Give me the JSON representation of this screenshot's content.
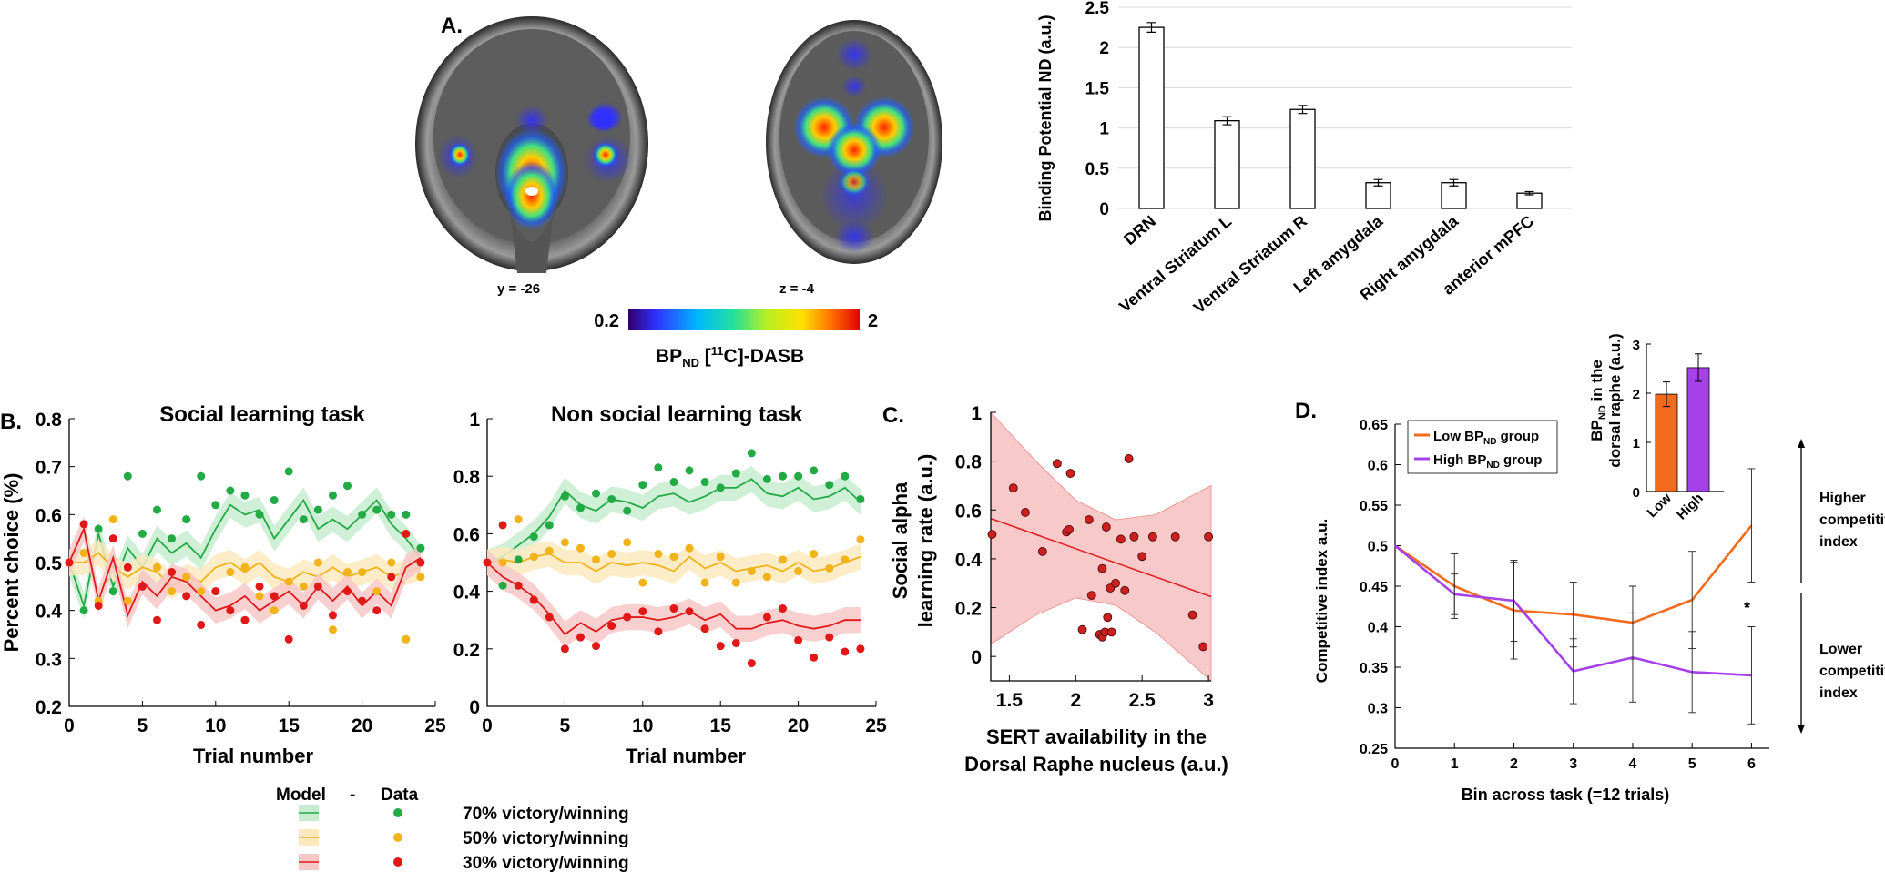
{
  "panelA": {
    "label": "A.",
    "coronal_label": "y = -26",
    "axial_label": "z = -4",
    "colorbar": {
      "min": "0.2",
      "max": "2",
      "title_main": "BP",
      "title_sub": "ND",
      "title_sup": "11",
      "title_tail": "C]-DASB",
      "title_open": " ["
    },
    "chart_data": {
      "type": "bar",
      "ylabel": "Binding Potential ND (a.u.)",
      "ylim": [
        0,
        2.5
      ],
      "yticks": [
        "0",
        "0.5",
        "1",
        "1.5",
        "2",
        "2.5"
      ],
      "categories": [
        "DRN",
        "Ventral Striatum L",
        "Ventral Striatum R",
        "Left amygdala",
        "Right amygdala",
        "anterior mPFC"
      ],
      "values": [
        2.25,
        1.09,
        1.23,
        0.32,
        0.32,
        0.19
      ],
      "errors": [
        0.06,
        0.05,
        0.05,
        0.04,
        0.04,
        0.02
      ],
      "bar_color": "#ffffff",
      "grid_color": "#d9d9d9"
    }
  },
  "panelB": {
    "label": "B.",
    "social": {
      "title": "Social learning task",
      "ylabel": "Percent choice (%)",
      "xlabel": "Trial number",
      "yticks": [
        "0.2",
        "0.3",
        "0.4",
        "0.5",
        "0.6",
        "0.7",
        "0.8"
      ],
      "xticks": [
        "0",
        "5",
        "10",
        "15",
        "20",
        "25"
      ],
      "ylim": [
        0.2,
        0.8
      ],
      "xlim": [
        0,
        25
      ],
      "model_70": [
        0.5,
        0.41,
        0.56,
        0.45,
        0.53,
        0.49,
        0.55,
        0.52,
        0.54,
        0.51,
        0.57,
        0.62,
        0.6,
        0.61,
        0.55,
        0.59,
        0.63,
        0.57,
        0.59,
        0.57,
        0.6,
        0.63,
        0.58,
        0.55,
        0.51
      ],
      "model_50": [
        0.5,
        0.5,
        0.52,
        0.49,
        0.47,
        0.49,
        0.48,
        0.45,
        0.47,
        0.46,
        0.49,
        0.5,
        0.48,
        0.5,
        0.47,
        0.46,
        0.48,
        0.47,
        0.49,
        0.47,
        0.48,
        0.49,
        0.47,
        0.48,
        0.49
      ],
      "model_30": [
        0.5,
        0.57,
        0.42,
        0.51,
        0.39,
        0.46,
        0.43,
        0.47,
        0.46,
        0.43,
        0.4,
        0.41,
        0.43,
        0.4,
        0.42,
        0.44,
        0.41,
        0.45,
        0.42,
        0.45,
        0.41,
        0.44,
        0.41,
        0.49,
        0.51
      ],
      "data_70": [
        0.5,
        0.4,
        0.57,
        0.44,
        0.68,
        0.56,
        0.61,
        0.55,
        0.59,
        0.68,
        0.62,
        0.65,
        0.64,
        0.6,
        0.63,
        0.69,
        0.59,
        0.61,
        0.64,
        0.66,
        0.6,
        0.61,
        0.6,
        0.6,
        0.53
      ],
      "data_50": [
        0.5,
        0.52,
        0.42,
        0.59,
        0.42,
        0.45,
        0.49,
        0.44,
        0.47,
        0.44,
        0.44,
        0.48,
        0.49,
        0.43,
        0.4,
        0.46,
        0.45,
        0.5,
        0.36,
        0.48,
        0.48,
        0.44,
        0.5,
        0.34,
        0.47
      ],
      "data_30": [
        0.5,
        0.58,
        0.41,
        0.55,
        0.49,
        0.45,
        0.38,
        0.48,
        0.43,
        0.37,
        0.44,
        0.4,
        0.38,
        0.45,
        0.43,
        0.34,
        0.41,
        0.45,
        0.39,
        0.44,
        0.42,
        0.4,
        0.47,
        0.56,
        0.5
      ]
    },
    "nonsocial": {
      "title": "Non social learning task",
      "xlabel": "Trial number",
      "yticks": [
        "0",
        "0.2",
        "0.4",
        "0.6",
        "0.8",
        "1"
      ],
      "xticks": [
        "0",
        "5",
        "10",
        "15",
        "20",
        "25"
      ],
      "ylim": [
        0,
        1
      ],
      "xlim": [
        0,
        25
      ],
      "model_70": [
        0.5,
        0.52,
        0.56,
        0.6,
        0.66,
        0.75,
        0.7,
        0.68,
        0.72,
        0.71,
        0.69,
        0.73,
        0.74,
        0.71,
        0.73,
        0.76,
        0.76,
        0.79,
        0.74,
        0.73,
        0.76,
        0.72,
        0.73,
        0.76,
        0.71
      ],
      "model_50": [
        0.5,
        0.51,
        0.5,
        0.52,
        0.53,
        0.5,
        0.5,
        0.47,
        0.5,
        0.49,
        0.5,
        0.49,
        0.47,
        0.52,
        0.48,
        0.5,
        0.47,
        0.48,
        0.49,
        0.47,
        0.5,
        0.47,
        0.48,
        0.5,
        0.52
      ],
      "model_30": [
        0.5,
        0.45,
        0.42,
        0.38,
        0.32,
        0.25,
        0.29,
        0.26,
        0.3,
        0.31,
        0.31,
        0.3,
        0.31,
        0.33,
        0.3,
        0.32,
        0.27,
        0.27,
        0.29,
        0.3,
        0.28,
        0.27,
        0.28,
        0.3,
        0.3
      ],
      "data_70": [
        0.5,
        0.42,
        0.51,
        0.59,
        0.63,
        0.73,
        0.69,
        0.74,
        0.72,
        0.68,
        0.77,
        0.83,
        0.78,
        0.82,
        0.78,
        0.76,
        0.81,
        0.88,
        0.79,
        0.8,
        0.8,
        0.82,
        0.77,
        0.8,
        0.72
      ],
      "data_50": [
        0.5,
        0.5,
        0.65,
        0.52,
        0.54,
        0.57,
        0.55,
        0.51,
        0.53,
        0.57,
        0.43,
        0.53,
        0.52,
        0.55,
        0.43,
        0.52,
        0.43,
        0.47,
        0.45,
        0.51,
        0.47,
        0.53,
        0.48,
        0.51,
        0.58
      ],
      "data_30": [
        0.5,
        0.63,
        0.42,
        0.37,
        0.31,
        0.2,
        0.24,
        0.21,
        0.28,
        0.31,
        0.33,
        0.26,
        0.34,
        0.33,
        0.27,
        0.21,
        0.22,
        0.15,
        0.31,
        0.34,
        0.23,
        0.17,
        0.24,
        0.19,
        0.2
      ]
    },
    "legend": {
      "model_label": "Model",
      "dash": "-",
      "data_label": "Data",
      "items": [
        {
          "label": "70% victory/winning",
          "color": "#22aa44",
          "band": "#c7ecd0"
        },
        {
          "label": "50% victory/winning",
          "color": "#f2b21a",
          "band": "#fbe9bd"
        },
        {
          "label": "30% victory/winning",
          "color": "#e01818",
          "band": "#f7c8c8"
        }
      ]
    },
    "colors": {
      "green": "#22aa44",
      "orange": "#f2b21a",
      "red": "#e01818"
    }
  },
  "panelC": {
    "label": "C.",
    "chart_data": {
      "type": "scatter",
      "ylabel_line1": "Social alpha",
      "ylabel_line2": "learning rate (a.u.)",
      "xlabel_line1": "SERT availability in the",
      "xlabel_line2": "Dorsal Raphe nucleus (a.u.)",
      "xlim": [
        1.36,
        3.02
      ],
      "ylim": [
        -0.1,
        1.0
      ],
      "xticks": [
        "1.5",
        "2",
        "2.5",
        "3"
      ],
      "yticks": [
        "0",
        "0.2",
        "0.4",
        "0.6",
        "0.8",
        "1"
      ],
      "points": [
        [
          1.37,
          0.5
        ],
        [
          1.53,
          0.69
        ],
        [
          1.62,
          0.59
        ],
        [
          1.75,
          0.43
        ],
        [
          1.86,
          0.79
        ],
        [
          1.93,
          0.51
        ],
        [
          1.95,
          0.52
        ],
        [
          1.96,
          0.75
        ],
        [
          2.05,
          0.11
        ],
        [
          2.1,
          0.56
        ],
        [
          2.12,
          0.25
        ],
        [
          2.18,
          0.09
        ],
        [
          2.2,
          0.08
        ],
        [
          2.2,
          0.36
        ],
        [
          2.22,
          0.1
        ],
        [
          2.23,
          0.53
        ],
        [
          2.24,
          0.16
        ],
        [
          2.26,
          0.28
        ],
        [
          2.27,
          0.1
        ],
        [
          2.3,
          0.3
        ],
        [
          2.34,
          0.48
        ],
        [
          2.37,
          0.27
        ],
        [
          2.4,
          0.81
        ],
        [
          2.44,
          0.49
        ],
        [
          2.5,
          0.41
        ],
        [
          2.58,
          0.49
        ],
        [
          2.75,
          0.49
        ],
        [
          2.88,
          0.17
        ],
        [
          2.96,
          0.04
        ],
        [
          3.0,
          0.49
        ]
      ],
      "fit": [
        [
          1.36,
          0.565
        ],
        [
          3.02,
          0.245
        ]
      ],
      "band_upper": [
        [
          1.36,
          1.0
        ],
        [
          1.7,
          0.8
        ],
        [
          2.0,
          0.64
        ],
        [
          2.3,
          0.56
        ],
        [
          2.6,
          0.58
        ],
        [
          3.02,
          0.7
        ]
      ],
      "band_lower": [
        [
          1.36,
          0.05
        ],
        [
          1.7,
          0.17
        ],
        [
          2.0,
          0.24
        ],
        [
          2.3,
          0.21
        ],
        [
          2.6,
          0.1
        ],
        [
          3.02,
          -0.1
        ]
      ],
      "point_color": "#cc2020",
      "band_color": "#f8c9c9"
    }
  },
  "panelD": {
    "label": "D.",
    "chart_data": {
      "type": "line",
      "ylabel": "Competitive index a.u.",
      "xlabel": "Bin across task (=12 trials)",
      "xlim": [
        0,
        6.3
      ],
      "ylim": [
        0.25,
        0.65
      ],
      "xticks": [
        "0",
        "1",
        "2",
        "3",
        "4",
        "5",
        "6"
      ],
      "yticks": [
        "0.25",
        "0.3",
        "0.35",
        "0.4",
        "0.45",
        "0.5",
        "0.55",
        "0.6",
        "0.65"
      ],
      "x": [
        0,
        1,
        2,
        3,
        4,
        5,
        6
      ],
      "series": [
        {
          "name": "Low BPND group",
          "color": "#f26b1d",
          "values": [
            0.5,
            0.45,
            0.42,
            0.415,
            0.405,
            0.433,
            0.525
          ],
          "errors": [
            0,
            0.04,
            0.06,
            0.04,
            0.045,
            0.06,
            0.07
          ]
        },
        {
          "name": "High BPND group",
          "color": "#a641e8",
          "values": [
            0.5,
            0.44,
            0.432,
            0.345,
            0.362,
            0.344,
            0.34
          ],
          "errors": [
            0,
            0.025,
            0.05,
            0.04,
            0.055,
            0.05,
            0.06
          ]
        }
      ],
      "legend": [
        {
          "pre": "Low BP",
          "sub": "ND",
          "post": " group"
        },
        {
          "pre": "High BP",
          "sub": "ND",
          "post": " group"
        }
      ],
      "annot_higher": [
        "Higher",
        "competitive",
        "index"
      ],
      "annot_lower": [
        "Lower",
        "competitive",
        "index"
      ],
      "star": "*"
    },
    "inset": {
      "type": "bar",
      "ylabel_pre": "BP",
      "ylabel_sub": "ND",
      "ylabel_line2": " in the",
      "ylabel_line3": "dorsal raphe (a.u.)",
      "ylim": [
        0,
        3
      ],
      "yticks": [
        "0",
        "1",
        "2",
        "3"
      ],
      "categories": [
        "Low",
        "High"
      ],
      "values": [
        1.98,
        2.52
      ],
      "errors": [
        0.25,
        0.28
      ],
      "colors": [
        "#f26b1d",
        "#a641e8"
      ]
    }
  }
}
